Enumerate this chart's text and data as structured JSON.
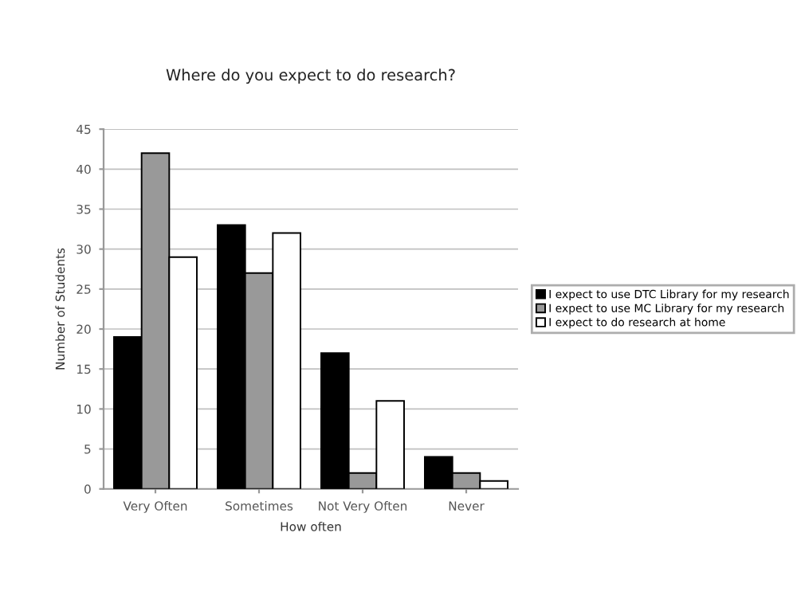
{
  "chart_data": {
    "type": "bar",
    "title": "Where do you expect to do research?",
    "xlabel": "How often",
    "ylabel": "Number of Students",
    "categories": [
      "Very Often",
      "Sometimes",
      "Not Very Often",
      "Never"
    ],
    "series": [
      {
        "name": "I expect to use DTC Library for my research",
        "color": "#000000",
        "values": [
          19,
          33,
          17,
          4
        ]
      },
      {
        "name": "I expect to use MC Library for my research",
        "color": "#999999",
        "values": [
          42,
          27,
          2,
          2
        ]
      },
      {
        "name": "I expect to do research at home",
        "color": "#ffffff",
        "values": [
          29,
          32,
          11,
          1
        ]
      }
    ],
    "ylim": [
      0,
      45
    ],
    "yticks": [
      0,
      5,
      10,
      15,
      20,
      25,
      30,
      35,
      40,
      45
    ],
    "grid": "y",
    "legend": "right"
  }
}
